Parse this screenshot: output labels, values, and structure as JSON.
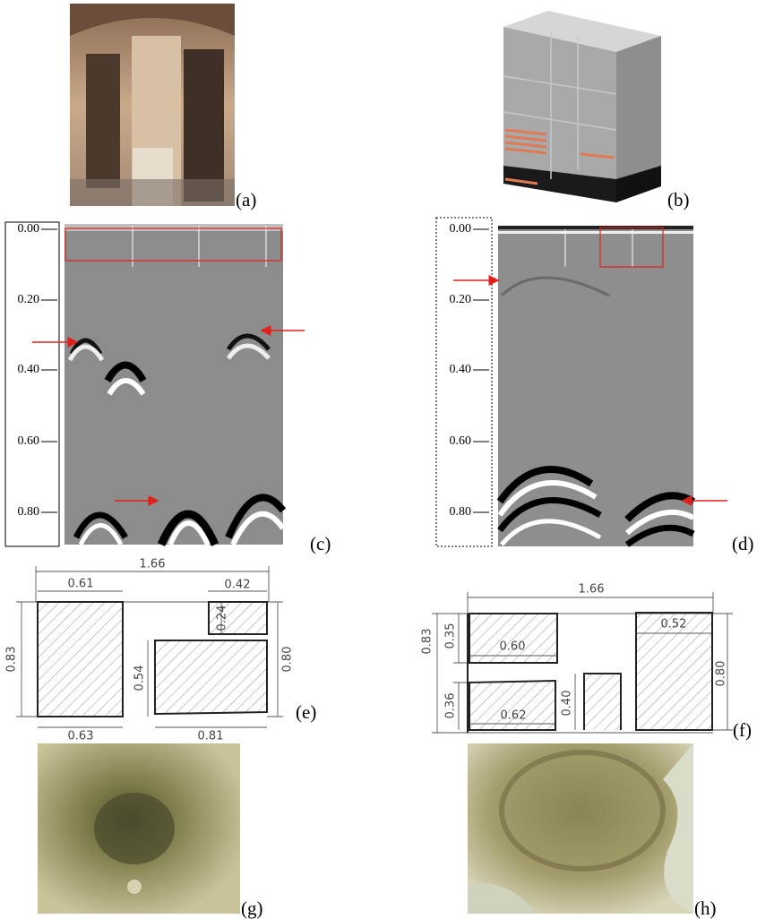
{
  "panel_labels": [
    "(a)",
    "(b)",
    "(c)",
    "(d)",
    "(e)",
    "(f)",
    "(g)",
    "(h)"
  ],
  "radargram_c": {
    "depth_labels": [
      "0.00",
      "0.20",
      "0.40",
      "0.60",
      "0.80"
    ]
  },
  "radargram_d": {
    "depth_labels": [
      "0.00",
      "0.20",
      "0.40",
      "0.60",
      "0.80"
    ]
  },
  "drawing_e": {
    "dimensions": [
      "1.66",
      "0.61",
      "0.42",
      "0.83",
      "0.24",
      "0.54",
      "0.80",
      "0.63",
      "0.81"
    ]
  },
  "drawing_f": {
    "dimensions": [
      "1.66",
      "0.35",
      "0.60",
      "0.52",
      "0.83",
      "0.80",
      "0.36",
      "0.40",
      "0.62"
    ]
  }
}
